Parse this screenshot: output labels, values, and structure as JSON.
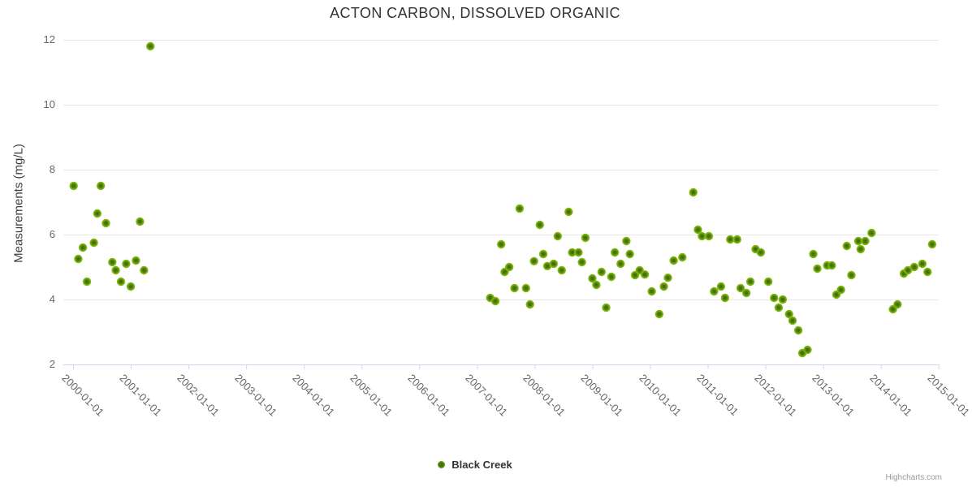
{
  "title": "ACTON CARBON, DISSOLVED ORGANIC",
  "y_axis": {
    "title": "Measurements (mg/L)",
    "tick_values": [
      2,
      4,
      6,
      8,
      10,
      12
    ]
  },
  "x_axis": {
    "tick_years": [
      2000,
      2001,
      2002,
      2003,
      2004,
      2005,
      2006,
      2007,
      2008,
      2009,
      2010,
      2011,
      2012,
      2013,
      2014,
      2015
    ],
    "tick_labels": [
      "2000-01-01",
      "2001-01-01",
      "2002-01-01",
      "2003-01-01",
      "2004-01-01",
      "2005-01-01",
      "2006-01-01",
      "2007-01-01",
      "2008-01-01",
      "2009-01-01",
      "2010-01-01",
      "2011-01-01",
      "2012-01-01",
      "2013-01-01",
      "2014-01-01",
      "2015-01-01"
    ]
  },
  "legend": {
    "label": "Black Creek"
  },
  "credits": "Highcharts.com",
  "colors": {
    "title": "#333333",
    "labels": "#666666",
    "grid": "#e6e6e6",
    "axis_line": "#ccd6eb",
    "marker_outer": "#7ab10c",
    "marker_inner": "#3e6a05",
    "credits": "#999999"
  },
  "chart_data": {
    "type": "scatter",
    "title": "ACTON CARBON, DISSOLVED ORGANIC",
    "xlabel": "",
    "ylabel": "Measurements (mg/L)",
    "ylim": [
      2,
      12
    ],
    "xlim_decimal_years": [
      1999.83,
      2015.01
    ],
    "grid": "horizontal-only",
    "legend_position": "bottom-center",
    "series": [
      {
        "name": "Black Creek",
        "color": "#7ab10c",
        "points": [
          [
            2000.01,
            7.5
          ],
          [
            2000.09,
            5.25
          ],
          [
            2000.17,
            5.6
          ],
          [
            2000.24,
            4.55
          ],
          [
            2000.36,
            5.75
          ],
          [
            2000.42,
            6.65
          ],
          [
            2000.48,
            7.5
          ],
          [
            2000.57,
            6.35
          ],
          [
            2000.68,
            5.15
          ],
          [
            2000.74,
            4.9
          ],
          [
            2000.83,
            4.55
          ],
          [
            2000.92,
            5.1
          ],
          [
            2001.0,
            4.4
          ],
          [
            2001.09,
            5.2
          ],
          [
            2001.16,
            6.4
          ],
          [
            2001.23,
            4.9
          ],
          [
            2001.34,
            11.8
          ],
          [
            2007.23,
            4.05
          ],
          [
            2007.32,
            3.95
          ],
          [
            2007.42,
            5.7
          ],
          [
            2007.48,
            4.85
          ],
          [
            2007.56,
            5.0
          ],
          [
            2007.65,
            4.35
          ],
          [
            2007.74,
            6.8
          ],
          [
            2007.85,
            4.35
          ],
          [
            2007.92,
            3.85
          ],
          [
            2007.99,
            5.18
          ],
          [
            2008.09,
            6.3
          ],
          [
            2008.15,
            5.4
          ],
          [
            2008.22,
            5.03
          ],
          [
            2008.33,
            5.1
          ],
          [
            2008.4,
            5.95
          ],
          [
            2008.47,
            4.9
          ],
          [
            2008.59,
            6.7
          ],
          [
            2008.65,
            5.45
          ],
          [
            2008.76,
            5.45
          ],
          [
            2008.82,
            5.15
          ],
          [
            2008.88,
            5.9
          ],
          [
            2009.0,
            4.65
          ],
          [
            2009.07,
            4.45
          ],
          [
            2009.16,
            4.85
          ],
          [
            2009.24,
            3.75
          ],
          [
            2009.33,
            4.7
          ],
          [
            2009.39,
            5.45
          ],
          [
            2009.49,
            5.1
          ],
          [
            2009.59,
            5.8
          ],
          [
            2009.65,
            5.4
          ],
          [
            2009.74,
            4.75
          ],
          [
            2009.82,
            4.9
          ],
          [
            2009.91,
            4.77
          ],
          [
            2010.03,
            4.25
          ],
          [
            2010.16,
            3.55
          ],
          [
            2010.24,
            4.4
          ],
          [
            2010.31,
            4.67
          ],
          [
            2010.41,
            5.2
          ],
          [
            2010.56,
            5.3
          ],
          [
            2010.75,
            7.3
          ],
          [
            2010.83,
            6.15
          ],
          [
            2010.9,
            5.95
          ],
          [
            2011.02,
            5.95
          ],
          [
            2011.11,
            4.25
          ],
          [
            2011.23,
            4.4
          ],
          [
            2011.3,
            4.05
          ],
          [
            2011.39,
            5.85
          ],
          [
            2011.51,
            5.85
          ],
          [
            2011.57,
            4.35
          ],
          [
            2011.67,
            4.2
          ],
          [
            2011.74,
            4.55
          ],
          [
            2011.83,
            5.55
          ],
          [
            2011.92,
            5.45
          ],
          [
            2012.05,
            4.55
          ],
          [
            2012.15,
            4.05
          ],
          [
            2012.23,
            3.75
          ],
          [
            2012.3,
            4.0
          ],
          [
            2012.41,
            3.55
          ],
          [
            2012.47,
            3.35
          ],
          [
            2012.57,
            3.05
          ],
          [
            2012.64,
            2.35
          ],
          [
            2012.73,
            2.45
          ],
          [
            2012.83,
            5.4
          ],
          [
            2012.9,
            4.95
          ],
          [
            2013.07,
            5.05
          ],
          [
            2013.15,
            5.05
          ],
          [
            2013.23,
            4.15
          ],
          [
            2013.31,
            4.3
          ],
          [
            2013.41,
            5.65
          ],
          [
            2013.49,
            4.75
          ],
          [
            2013.61,
            5.8
          ],
          [
            2013.65,
            5.55
          ],
          [
            2013.73,
            5.8
          ],
          [
            2013.84,
            6.05
          ],
          [
            2014.21,
            3.7
          ],
          [
            2014.29,
            3.85
          ],
          [
            2014.4,
            4.8
          ],
          [
            2014.47,
            4.9
          ],
          [
            2014.58,
            5.0
          ],
          [
            2014.72,
            5.1
          ],
          [
            2014.81,
            4.85
          ],
          [
            2014.89,
            5.7
          ]
        ]
      }
    ]
  }
}
